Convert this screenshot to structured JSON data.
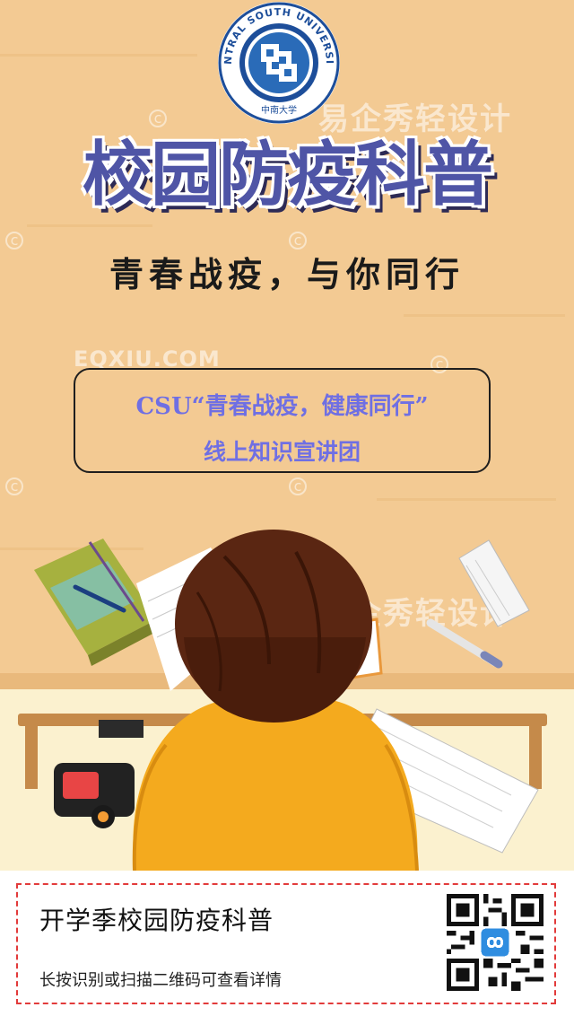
{
  "badge": {
    "ring_text": "CENTRAL SOUTH UNIVERSITY",
    "cn_text": "中南大学",
    "colors": {
      "ring": "#1d4e9a",
      "inner": "#2a6bb8"
    }
  },
  "title": "校园防疫科普",
  "subtitle": "青春战疫，与你同行",
  "info": {
    "line1": "CSU“青春战疫，健康同行”",
    "line2": "线上知识宣讲团"
  },
  "watermarks": {
    "cn": "易企秀轻设计",
    "en": "EQXIU.COM",
    "c": "c"
  },
  "footer": {
    "title": "开学季校园防疫科普",
    "desc": "长按识别或扫描二维码可查看详情",
    "qr_icon": "qr-code-icon"
  },
  "colors": {
    "background": "#f3ca93",
    "title": "#4f55a6",
    "info_text": "#6f6fe3",
    "footer_border": "#e23b3b"
  }
}
